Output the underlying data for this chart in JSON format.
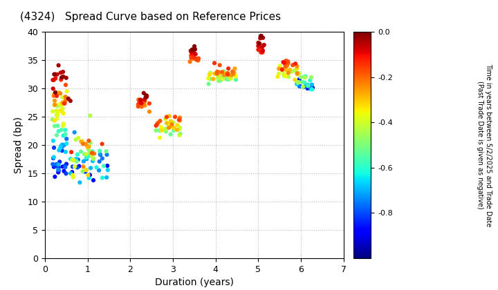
{
  "title": "(4324)   Spread Curve based on Reference Prices",
  "xlabel": "Duration (years)",
  "ylabel": "Spread (bp)",
  "colorbar_label_line1": "Time in years between 5/2/2025 and Trade Date",
  "colorbar_label_line2": "(Past Trade Date is given as negative)",
  "xlim": [
    0,
    7
  ],
  "ylim": [
    0,
    40
  ],
  "xticks": [
    0,
    1,
    2,
    3,
    4,
    5,
    6,
    7
  ],
  "yticks": [
    0,
    5,
    10,
    15,
    20,
    25,
    30,
    35,
    40
  ],
  "cmap": "jet",
  "vmin": -1.0,
  "vmax": 0.0,
  "background_color": "#ffffff",
  "grid_color": "#bbbbbb",
  "marker_size": 20,
  "title_fontsize": 11,
  "axis_fontsize": 9,
  "colorbar_tick_fontsize": 8
}
